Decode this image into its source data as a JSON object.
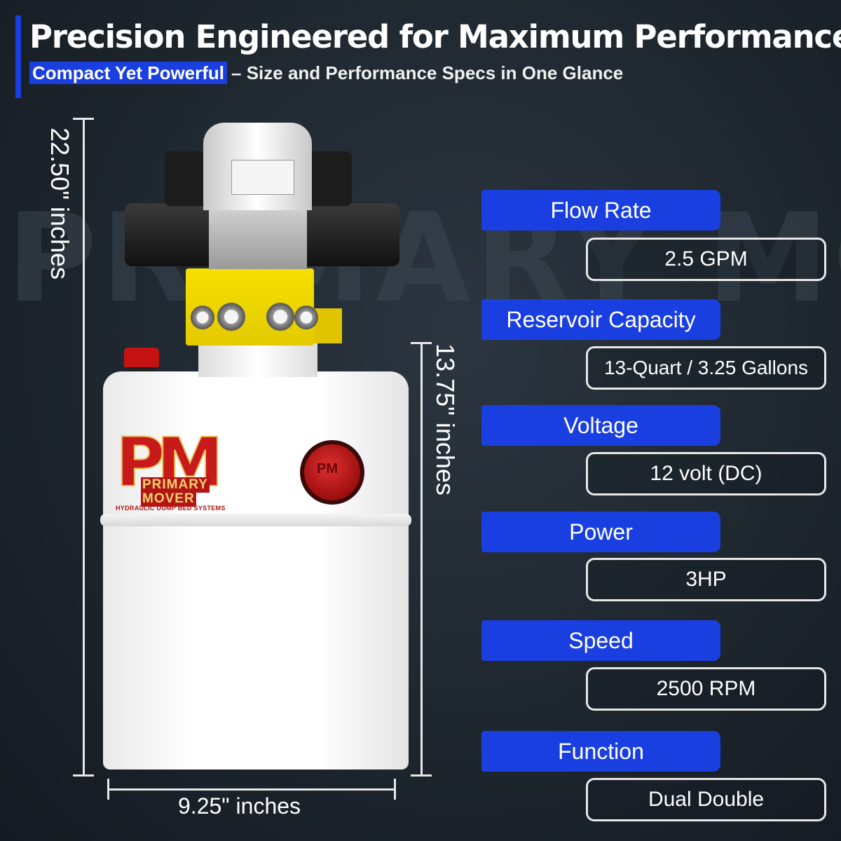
{
  "header": {
    "title": "Precision Engineered for Maximum Performance",
    "subtitle_highlight": "Compact Yet Powerful",
    "subtitle_rest": "– Size and Performance Specs in One Glance"
  },
  "watermark": "PRIMARY MOVER",
  "dimensions": {
    "height_total": "22.50\" inches",
    "height_tank": "13.75\" inches",
    "width": "9.25\" inches"
  },
  "logo": {
    "mark": "PM",
    "line1": "PRIMARY",
    "line2": "MOVER",
    "tagline": "HYDRAULIC DUMP BED SYSTEMS",
    "cap_text": "PM"
  },
  "specs": [
    {
      "label": "Flow Rate",
      "value": "2.5 GPM"
    },
    {
      "label": "Reservoir Capacity",
      "value": "13-Quart / 3.25 Gallons"
    },
    {
      "label": "Voltage",
      "value": "12 volt (DC)"
    },
    {
      "label": "Power",
      "value": "3HP"
    },
    {
      "label": "Speed",
      "value": "2500 RPM"
    },
    {
      "label": "Function",
      "value": "Dual Double"
    }
  ],
  "colors": {
    "accent": "#1a3fe0",
    "background": "#1e262e",
    "brand_red": "#c81a1a",
    "manifold_yellow": "#f6e000"
  }
}
